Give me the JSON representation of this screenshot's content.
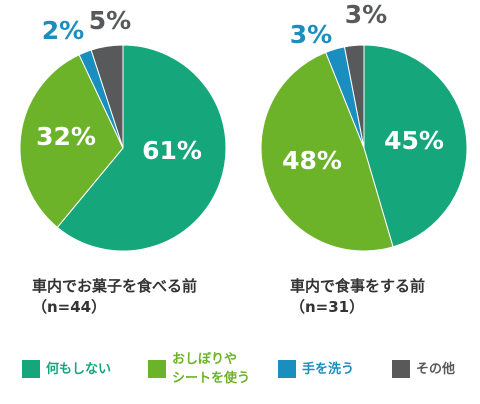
{
  "colors": {
    "nothing": "#16a67b",
    "wipes": "#6db32a",
    "wash": "#1a8ebf",
    "other": "#58595b"
  },
  "legend": [
    {
      "key": "nothing",
      "label": "何もしない"
    },
    {
      "key": "wipes",
      "label": "おしぼりやシートを使う",
      "line1": "おしぼりや",
      "line2": "シートを使う"
    },
    {
      "key": "wash",
      "label": "手を洗う"
    },
    {
      "key": "other",
      "label": "その他"
    }
  ],
  "chart_data": [
    {
      "type": "pie",
      "title": "車内でお菓子を食べる前",
      "subtitle": "（n=44）",
      "categories": [
        "何もしない",
        "おしぼりやシートを使う",
        "手を洗う",
        "その他"
      ],
      "values": [
        61,
        32,
        2,
        5
      ],
      "labels": [
        "61%",
        "32%",
        "2%",
        "5%"
      ]
    },
    {
      "type": "pie",
      "title": "車内で食事をする前",
      "subtitle": "（n=31）",
      "categories": [
        "何もしない",
        "おしぼりやシートを使う",
        "手を洗う",
        "その他"
      ],
      "values": [
        45,
        48,
        3,
        3
      ],
      "labels": [
        "45%",
        "48%",
        "3%",
        "3%"
      ]
    }
  ]
}
